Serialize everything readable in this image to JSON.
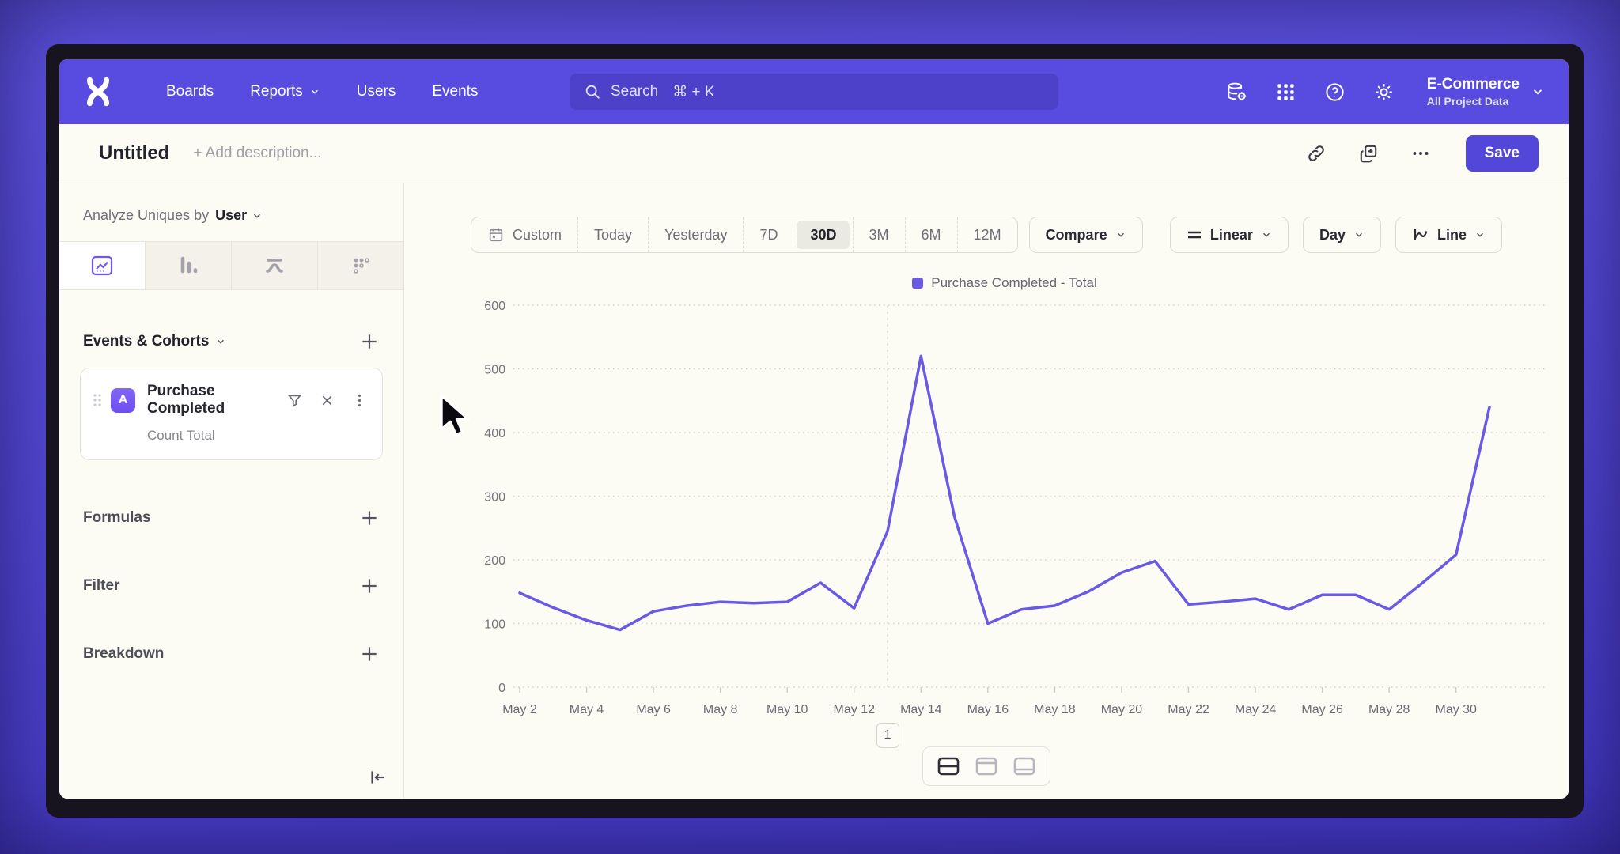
{
  "app": {
    "nav": {
      "items": [
        {
          "label": "Boards",
          "dropdown": false
        },
        {
          "label": "Reports",
          "dropdown": true
        },
        {
          "label": "Users",
          "dropdown": false
        },
        {
          "label": "Events",
          "dropdown": false
        }
      ],
      "search": {
        "label": "Search",
        "shortcut": "⌘ + K"
      },
      "project_name": "E-Commerce",
      "project_subtitle": "All Project Data"
    },
    "header": {
      "title": "Untitled",
      "description_placeholder": "+ Add description...",
      "save_label": "Save"
    },
    "sidebar": {
      "analyze_prefix": "Analyze Uniques by",
      "analyze_value": "User",
      "events_section_label": "Events & Cohorts",
      "event_card": {
        "badge": "A",
        "name": "Purchase Completed",
        "metric": "Count Total"
      },
      "rows": [
        {
          "label": "Formulas"
        },
        {
          "label": "Filter"
        },
        {
          "label": "Breakdown"
        }
      ]
    },
    "toolbar": {
      "date_ranges": [
        "Custom",
        "Today",
        "Yesterday",
        "7D",
        "30D",
        "3M",
        "6M",
        "12M"
      ],
      "active_range": "30D",
      "compare_label": "Compare",
      "scale_label": "Linear",
      "granularity_label": "Day",
      "chart_type_label": "Line"
    }
  },
  "chart_data": {
    "type": "line",
    "title": "",
    "legend_position": "top-center",
    "x": [
      "May 2",
      "May 3",
      "May 4",
      "May 5",
      "May 6",
      "May 7",
      "May 8",
      "May 9",
      "May 10",
      "May 11",
      "May 12",
      "May 13",
      "May 14",
      "May 15",
      "May 16",
      "May 17",
      "May 18",
      "May 19",
      "May 20",
      "May 21",
      "May 22",
      "May 23",
      "May 24",
      "May 25",
      "May 26",
      "May 27",
      "May 28",
      "May 29",
      "May 30",
      "May 31"
    ],
    "x_tick_every": 2,
    "series": [
      {
        "name": "Purchase Completed - Total",
        "color": "#6A59E4",
        "values": [
          148,
          125,
          105,
          90,
          119,
          128,
          134,
          132,
          134,
          164,
          124,
          245,
          520,
          268,
          100,
          122,
          128,
          150,
          180,
          198,
          130,
          134,
          139,
          122,
          145,
          145,
          122,
          164,
          208,
          440
        ]
      }
    ],
    "ylim": [
      0,
      600
    ],
    "yticks": [
      0,
      100,
      200,
      300,
      400,
      500,
      600
    ],
    "grid": "dotted-horizontal",
    "annotations": [
      {
        "label": "1",
        "x": "May 13"
      }
    ]
  }
}
